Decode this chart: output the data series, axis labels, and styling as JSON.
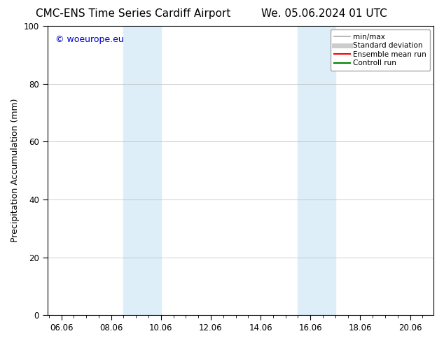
{
  "title_left": "CMC-ENS Time Series Cardiff Airport",
  "title_right": "We. 05.06.2024 01 UTC",
  "ylabel": "Precipitation Accumulation (mm)",
  "watermark": "© woeurope.eu",
  "watermark_color": "#0000cc",
  "xlim_start": 5.5,
  "xlim_end": 21.0,
  "ylim": [
    0,
    100
  ],
  "xticks": [
    6.06,
    8.06,
    10.06,
    12.06,
    14.06,
    16.06,
    18.06,
    20.06
  ],
  "xtick_labels": [
    "06.06",
    "08.06",
    "10.06",
    "12.06",
    "14.06",
    "16.06",
    "18.06",
    "20.06"
  ],
  "yticks": [
    0,
    20,
    40,
    60,
    80,
    100
  ],
  "shaded_bands": [
    {
      "x_start": 8.56,
      "x_end": 10.06
    },
    {
      "x_start": 15.56,
      "x_end": 17.06
    }
  ],
  "shaded_color": "#ddeef8",
  "background_color": "#ffffff",
  "legend_items": [
    {
      "label": "min/max",
      "color": "#aaaaaa",
      "lw": 1.2,
      "style": "solid"
    },
    {
      "label": "Standard deviation",
      "color": "#cccccc",
      "lw": 5.0,
      "style": "solid"
    },
    {
      "label": "Ensemble mean run",
      "color": "#ff0000",
      "lw": 1.5,
      "style": "solid"
    },
    {
      "label": "Controll run",
      "color": "#008000",
      "lw": 1.5,
      "style": "solid"
    }
  ],
  "title_fontsize": 11,
  "axis_fontsize": 9,
  "tick_fontsize": 8.5,
  "legend_fontsize": 7.5
}
